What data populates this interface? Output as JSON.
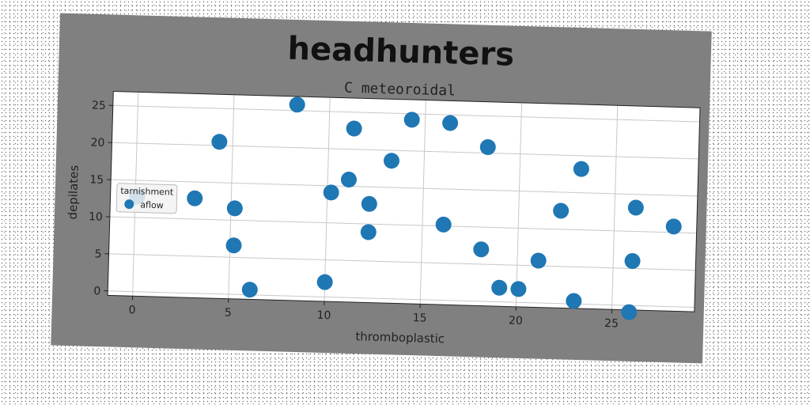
{
  "chart_data": {
    "type": "scatter",
    "title": "headhunters",
    "subtitle": "C meteoroidal",
    "xlabel": "thromboplastic",
    "ylabel": "depilates",
    "xlim": [
      -1.3,
      29.3
    ],
    "ylim": [
      -0.6,
      26.9
    ],
    "xticks": [
      0,
      5,
      10,
      15,
      20,
      25
    ],
    "yticks": [
      0,
      5,
      10,
      15,
      20,
      25
    ],
    "grid": true,
    "legend": {
      "title": "tarnishment",
      "placement": "center-left"
    },
    "marker_color": "#1f77b4",
    "series": [
      {
        "name": "aflow",
        "points": [
          {
            "x": 0.1,
            "y": 12.8
          },
          {
            "x": 3.1,
            "y": 12.8
          },
          {
            "x": 4.3,
            "y": 20.5
          },
          {
            "x": 5.2,
            "y": 11.6
          },
          {
            "x": 5.2,
            "y": 6.6
          },
          {
            "x": 6.1,
            "y": 0.7
          },
          {
            "x": 8.3,
            "y": 25.8
          },
          {
            "x": 10.0,
            "y": 2.0
          },
          {
            "x": 10.2,
            "y": 14.1
          },
          {
            "x": 11.1,
            "y": 15.9
          },
          {
            "x": 11.3,
            "y": 22.8
          },
          {
            "x": 12.2,
            "y": 12.7
          },
          {
            "x": 12.2,
            "y": 8.9
          },
          {
            "x": 13.3,
            "y": 18.6
          },
          {
            "x": 14.3,
            "y": 24.2
          },
          {
            "x": 16.1,
            "y": 10.2
          },
          {
            "x": 16.3,
            "y": 23.9
          },
          {
            "x": 18.1,
            "y": 7.0
          },
          {
            "x": 18.3,
            "y": 20.8
          },
          {
            "x": 19.1,
            "y": 1.9
          },
          {
            "x": 20.1,
            "y": 1.8
          },
          {
            "x": 21.1,
            "y": 5.7
          },
          {
            "x": 22.2,
            "y": 12.5
          },
          {
            "x": 23.0,
            "y": 0.4
          },
          {
            "x": 23.2,
            "y": 18.2
          },
          {
            "x": 25.9,
            "y": -0.9
          },
          {
            "x": 26.0,
            "y": 6.0
          },
          {
            "x": 26.1,
            "y": 13.2
          },
          {
            "x": 28.1,
            "y": 10.8
          }
        ]
      }
    ]
  }
}
